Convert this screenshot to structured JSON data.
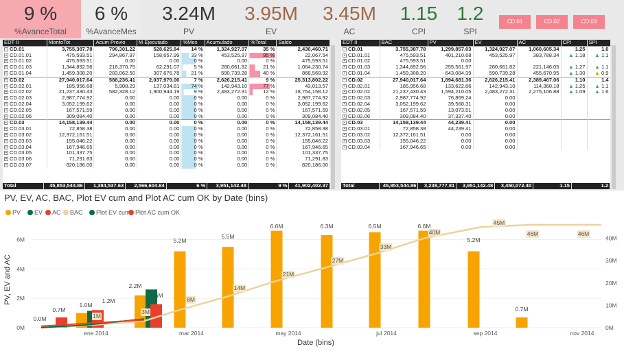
{
  "kpis": [
    {
      "value": "9 %",
      "label": "%AvanceTotal",
      "bg": "#f7a9b0"
    },
    {
      "value": "6 %",
      "label": "%AvanceMes",
      "bg": "#ececec"
    },
    {
      "value": "3.24M",
      "label": "PV",
      "color": "#333333"
    },
    {
      "value": "3.95M",
      "label": "EV",
      "color": "#a0664a"
    },
    {
      "value": "3.45M",
      "label": "AC",
      "color": "#a0664a"
    },
    {
      "value": "1.15",
      "label": "CPI",
      "color": "#2b7a3a"
    },
    {
      "value": "1.2",
      "label": "SPI",
      "color": "#2b7a3a"
    }
  ],
  "buttons": [
    "CD.01",
    "CD.02",
    "CD.03"
  ],
  "left_table": {
    "headers": [
      "EDT II",
      "MontoTot",
      "Acum Previo",
      "M Ejecutado",
      "%Mes",
      "Acumulado",
      "%Total",
      "Saldo"
    ],
    "rows": [
      {
        "g": 1,
        "c": [
          "CD.01",
          "3,755,387.78",
          "796,301.22",
          "528,625.84",
          "14 %",
          "1,324,927.07",
          "35 %",
          "2,430,460.71"
        ]
      },
      {
        "c": [
          "CD.01.01",
          "475,593.51",
          "294,867.97",
          "158,657.99",
          "33 %",
          "453,525.97",
          "95 %",
          "22,067.54"
        ],
        "m": 0.33,
        "t": 0.95
      },
      {
        "c": [
          "CD.01.02",
          "475,593.51",
          "0.00",
          "0.00",
          "0 %",
          "0.00",
          "0 %",
          "475,593.51"
        ],
        "m": 0,
        "t": 0
      },
      {
        "c": [
          "CD.01.03",
          "1,344,892.56",
          "218,370.75",
          "62,291.07",
          "5 %",
          "280,661.82",
          "21 %",
          "1,064,230.74"
        ],
        "m": 0.05,
        "t": 0.21
      },
      {
        "c": [
          "CD.01.04",
          "1,459,308.20",
          "283,062.50",
          "307,676.78",
          "21 %",
          "590,739.28",
          "40 %",
          "868,568.92"
        ],
        "m": 0.21,
        "t": 0.4
      },
      {
        "g": 1,
        "c": [
          "CD.02",
          "27,940,017.64",
          "588,236.41",
          "2,037,979.00",
          "7 %",
          "2,626,215.41",
          "9 %",
          "25,313,802.22"
        ]
      },
      {
        "c": [
          "CD.02.01",
          "185,956.68",
          "5,908.29",
          "137,034.81",
          "74 %",
          "142,943.10",
          "77 %",
          "43,013.57"
        ],
        "m": 0.74,
        "t": 0.77
      },
      {
        "c": [
          "CD.02.02",
          "21,237,430.43",
          "582,328.12",
          "1,900,944.19",
          "9 %",
          "2,483,272.31",
          "12 %",
          "18,754,158.12"
        ],
        "m": 0.09,
        "t": 0.12
      },
      {
        "c": [
          "CD.02.03",
          "2,987,774.92",
          "0.00",
          "0.00",
          "0 %",
          "0.00",
          "0 %",
          "2,987,774.92"
        ],
        "m": 0,
        "t": 0
      },
      {
        "c": [
          "CD.02.04",
          "3,052,199.62",
          "0.00",
          "0.00",
          "0 %",
          "0.00",
          "0 %",
          "3,052,199.62"
        ],
        "m": 0,
        "t": 0
      },
      {
        "c": [
          "CD.02.05",
          "167,571.59",
          "0.00",
          "0.00",
          "0 %",
          "0.00",
          "0 %",
          "167,571.59"
        ],
        "m": 0,
        "t": 0
      },
      {
        "c": [
          "CD.02.06",
          "309,084.40",
          "0.00",
          "0.00",
          "0 %",
          "0.00",
          "0 %",
          "309,084.40"
        ],
        "m": 0,
        "t": 0
      },
      {
        "g": 1,
        "c": [
          "CD.03",
          "14,158,139.44",
          "0.00",
          "0.00",
          "0 %",
          "0.00",
          "0 %",
          "14,158,139.44"
        ]
      },
      {
        "c": [
          "CD.03.01",
          "72,858.38",
          "0.00",
          "0.00",
          "0 %",
          "0.00",
          "0 %",
          "72,858.38"
        ],
        "m": 0,
        "t": 0
      },
      {
        "c": [
          "CD.03.02",
          "12,372,161.51",
          "0.00",
          "0.00",
          "0 %",
          "0.00",
          "0 %",
          "12,372,161.51"
        ],
        "m": 0,
        "t": 0
      },
      {
        "c": [
          "CD.03.03",
          "155,046.22",
          "0.00",
          "0.00",
          "0 %",
          "0.00",
          "0 %",
          "155,046.22"
        ],
        "m": 0,
        "t": 0
      },
      {
        "c": [
          "CD.03.04",
          "167,946.65",
          "0.00",
          "0.00",
          "0 %",
          "0.00",
          "0 %",
          "167,946.65"
        ],
        "m": 0,
        "t": 0
      },
      {
        "c": [
          "CD.03.05",
          "101,337.75",
          "0.00",
          "0.00",
          "0 %",
          "0.00",
          "0 %",
          "101,337.75"
        ],
        "m": 0,
        "t": 0
      },
      {
        "c": [
          "CD.03.06",
          "71,291.83",
          "0.00",
          "0.00",
          "0 %",
          "0.00",
          "0 %",
          "71,291.83"
        ],
        "m": 0,
        "t": 0
      },
      {
        "c": [
          "CD.03.07",
          "820,186.00",
          "0.00",
          "0.00",
          "0 %",
          "0.00",
          "0 %",
          "820,186.00"
        ],
        "m": 0,
        "t": 0
      }
    ],
    "total": [
      "Total",
      "45,853,544.86",
      "1,384,537.63",
      "2,566,604.84",
      "6 %",
      "3,951,142.48",
      "9 %",
      "41,902,402.37"
    ]
  },
  "right_table": {
    "headers": [
      "EDT II",
      "BAC",
      "PV",
      "EV",
      "AC",
      "CPI",
      "SPI"
    ],
    "rows": [
      {
        "g": 1,
        "c": [
          "CD.01",
          "3,755,387.78",
          "1,299,857.03",
          "1,324,927.07",
          "1,060,605.34",
          "1.25",
          "1.0"
        ]
      },
      {
        "c": [
          "CD.01.01",
          "475,593.51",
          "401,210.68",
          "453,525.97",
          "383,788.34",
          "1.18",
          "1.1"
        ],
        "a": [
          "up",
          "up"
        ]
      },
      {
        "c": [
          "CD.01.02",
          "475,593.51",
          "0.00",
          "",
          "",
          "",
          ""
        ]
      },
      {
        "c": [
          "CD.01.03",
          "1,344,892.56",
          "255,561.97",
          "280,661.82",
          "221,146.05",
          "1.27",
          "1.1"
        ],
        "a": [
          "up",
          "up"
        ]
      },
      {
        "c": [
          "CD.01.04",
          "1,459,308.20",
          "643,084.39",
          "590,739.28",
          "455,670.95",
          "1.30",
          "0.9"
        ],
        "a": [
          "up",
          "up"
        ]
      },
      {
        "g": 1,
        "c": [
          "CD.02",
          "27,940,017.64",
          "1,894,681.36",
          "2,626,215.41",
          "2,389,467.06",
          "1.10",
          "1.4"
        ]
      },
      {
        "c": [
          "CD.02.01",
          "185,956.68",
          "133,622.86",
          "142,943.10",
          "114,360.18",
          "1.25",
          "1.1"
        ],
        "a": [
          "up",
          "up"
        ]
      },
      {
        "c": [
          "CD.02.02",
          "21,237,430.43",
          "1,594,210.05",
          "2,483,272.31",
          "2,275,106.88",
          "1.09",
          "1.6"
        ],
        "a": [
          "up",
          "up"
        ]
      },
      {
        "c": [
          "CD.02.03",
          "2,987,774.92",
          "76,869.24",
          "0.00",
          "",
          "",
          ""
        ]
      },
      {
        "c": [
          "CD.02.04",
          "3,052,199.62",
          "39,568.31",
          "0.00",
          "",
          "",
          ""
        ]
      },
      {
        "c": [
          "CD.02.05",
          "167,571.59",
          "13,073.51",
          "0.00",
          "",
          "",
          ""
        ]
      },
      {
        "c": [
          "CD.02.06",
          "309,084.40",
          "37,337.40",
          "0.00",
          "",
          "",
          ""
        ]
      },
      {
        "g": 1,
        "c": [
          "CD.03",
          "14,158,139.44",
          "44,239.41",
          "0.00",
          "",
          "",
          ""
        ]
      },
      {
        "c": [
          "CD.03.01",
          "72,858.38",
          "44,239.41",
          "0.00",
          "",
          "",
          ""
        ]
      },
      {
        "c": [
          "CD.03.02",
          "12,372,161.51",
          "0.00",
          "0.00",
          "",
          "",
          ""
        ]
      },
      {
        "c": [
          "CD.03.03",
          "155,046.22",
          "0.00",
          "0.00",
          "",
          "",
          ""
        ]
      },
      {
        "c": [
          "CD.03.04",
          "167,946.65",
          "0.00",
          "0.00",
          "",
          "",
          ""
        ]
      }
    ],
    "total": [
      "Total",
      "45,853,544.86",
      "3,238,777.81",
      "3,951,142.48",
      "3,450,072.40",
      "1.15",
      "1.2"
    ]
  },
  "chart_data": {
    "type": "bar",
    "title": "PV, EV, AC, BAC, Plot EV cum and Plot AC cum OK by Date (bins)",
    "xlabel": "Date (bins)",
    "ylabel": "PV, EV and AC",
    "x_tick_labels": [
      "ene 2014",
      "mar 2014",
      "may 2014",
      "jul 2014",
      "sep 2014",
      "nov 2014"
    ],
    "y_left_ticks": [
      "0M",
      "2M",
      "4M",
      "6M"
    ],
    "y_right_ticks": [
      "0M",
      "10M",
      "20M",
      "30M",
      "40M"
    ],
    "ylim_left": [
      0,
      7
    ],
    "ylim_right": [
      0,
      46
    ],
    "legend": [
      {
        "name": "PV",
        "color": "#f7a400"
      },
      {
        "name": "EV",
        "color": "#0e6b4a"
      },
      {
        "name": "AC",
        "color": "#e8402a"
      },
      {
        "name": "BAC",
        "color": "#ecd39c"
      },
      {
        "name": "Plot EV cum",
        "color": "#0e6b4a"
      },
      {
        "name": "Plot AC cum OK",
        "color": "#e8402a"
      }
    ],
    "bins": [
      {
        "pv": 0,
        "ev": 0.04,
        "ac": 0.7
      },
      {
        "pv": 1.0,
        "ev": 1.15,
        "ac": 1.2
      },
      {
        "pv": 2.2,
        "ev": 2.6,
        "ac": 1.6
      },
      {
        "pv": 5.2
      },
      {
        "pv": 5.5
      },
      {
        "pv": 6.6
      },
      {
        "pv": 6.3
      },
      {
        "pv": 6.5
      },
      {
        "pv": 6.6
      },
      {
        "pv": 5.2
      },
      {
        "pv": 0.7
      }
    ],
    "bar_labels": [
      "0.0M",
      "0.7M",
      "1.0M",
      "1.2M",
      "2.2M",
      "1.6M",
      "5.2M",
      "5.5M",
      "6.6M",
      "6.3M",
      "6.5M",
      "6.6M",
      "5.2M",
      "0.7M"
    ],
    "bac_cum": [
      0.0,
      1.0,
      3.0,
      8.0,
      14.0,
      21.0,
      27.0,
      33.0,
      40.0,
      45.0,
      46.0,
      46.0
    ],
    "bac_labels": [
      "1M",
      "3M",
      "8M",
      "14M",
      "21M",
      "27M",
      "33M",
      "40M",
      "45M",
      "46M",
      "46M"
    ],
    "ev_cum": [
      0.04,
      1.2,
      3.9
    ],
    "ac_cum": [
      0.7,
      1.9,
      3.5
    ]
  }
}
